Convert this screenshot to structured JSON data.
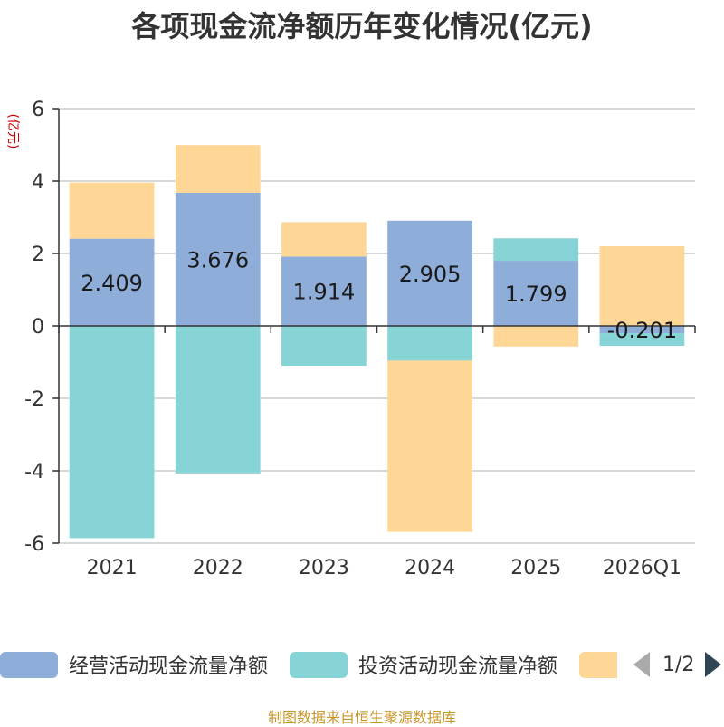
{
  "title": "各项现金流净额历年变化情况(亿元)",
  "source": "制图数据来自恒生聚源数据库",
  "legend": {
    "items": [
      {
        "label": "经营活动现金流量净额",
        "color": "#8eadd9"
      },
      {
        "label": "投资活动现金流量净额",
        "color": "#87d4d7"
      },
      {
        "label": "",
        "color": "#fed796"
      }
    ],
    "page": "1/2"
  },
  "chart_data": {
    "type": "bar",
    "stacked": true,
    "ylabel": "(亿元)",
    "ylim": [
      -6,
      6
    ],
    "yticks": [
      6,
      4,
      2,
      0,
      -2,
      -4,
      -6
    ],
    "categories": [
      "2021",
      "2022",
      "2023",
      "2024",
      "2025",
      "2026Q1"
    ],
    "grid": true,
    "legend_position": "bottom",
    "series": [
      {
        "name": "经营活动现金流量净额",
        "color": "#8eadd9",
        "values": [
          2.409,
          3.676,
          1.914,
          2.905,
          1.799,
          -0.201
        ],
        "labels": [
          "2.409",
          "3.676",
          "1.914",
          "2.905",
          "1.799",
          "-0.201"
        ]
      },
      {
        "name": "投资活动现金流量净额",
        "color": "#87d4d7",
        "values": [
          -5.86,
          -4.07,
          -1.1,
          -0.96,
          0.62,
          -0.35
        ]
      },
      {
        "color": "#fed796",
        "values": [
          1.55,
          1.32,
          0.95,
          -4.73,
          -0.57,
          2.2
        ]
      }
    ]
  }
}
